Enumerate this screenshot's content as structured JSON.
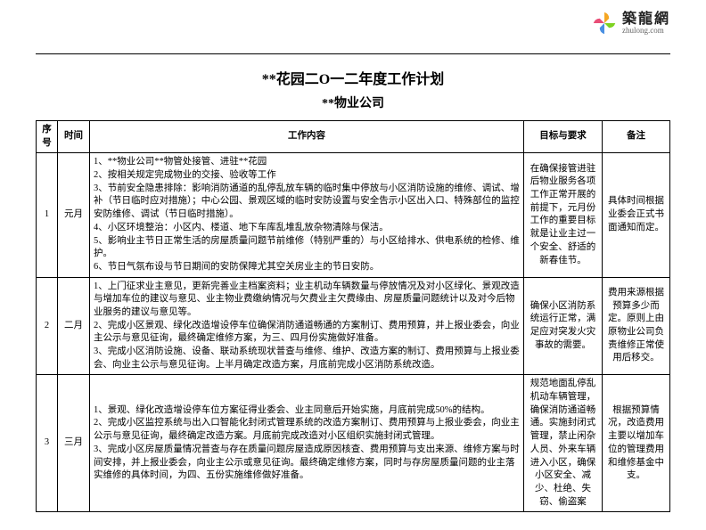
{
  "logo": {
    "cn": "築龍網",
    "en": "zhulong.com",
    "petals": [
      "#f5a623",
      "#7ed321",
      "#4a90e2",
      "#e94e77"
    ]
  },
  "title_main": "**花园二O一二年度工作计划",
  "title_sub": "**物业公司",
  "headers": {
    "no": "序号",
    "time": "时间",
    "content": "工作内容",
    "target": "目标与要求",
    "note": "备注"
  },
  "rows": [
    {
      "no": "1",
      "time": "元月",
      "content": "1、**物业公司**物管处接管、进驻**花园\n2、按相关规定完成物业的交接、验收等工作\n3、节前安全隐患排除：影响消防通道的乱停乱放车辆的临时集中停放与小区消防设施的维修、调试、增补（节日临时应对措施）；中心公园、景观区域的临时安防设置与安全告示小区出入口、特殊部位的监控安防维修、调试（节日临时措施）。\n4、小区环境整治：小区内、楼道、地下车库乱堆乱放杂物清除与保洁。\n5、影响业主节日正常生活的房屋质量问题节前维修（特别严重的）与小区给排水、供电系统的检修、维护。\n6、节日气氛布设与节日期间的安防保障尤其空关房业主的节日安防。",
      "target": "在确保接管进驻后物业服务各项工作正常开展的前提下，元月份工作的重要目标就是让业主过一个安全、舒适的新春佳节。",
      "note": "具体时间根据业委会正式书面通知而定。"
    },
    {
      "no": "2",
      "time": "二月",
      "content": "1、上门征求业主意见，更新完善业主档案资料；业主机动车辆数量与停放情况及对小区绿化、景观改造与增加车位的建议与意见、业主物业费缴纳情况与欠费业主欠费缘由、房屋质量问题统计以及对今后物业服务的建议与意见等。\n2、完成小区景观、绿化改造增设停车位确保消防通道畅通的方案制订、费用预算，并上报业委会，向业主公示与意见征询，最终确定维修方案，为三、四月份实施做好准备。\n3、完成小区消防设施、设备、联动系统现状普查与维修、维护、改造方案的制订、费用预算与上报业委会、向业主公示与意见征询。上半月确定改造方案，月底前完成小区消防系统改造。",
      "target": "确保小区消防系统运行正常，满足应对突发火灾事故的需要。",
      "note": "费用来源根据预算多少而定。原则上由原物业公司负责维修正常使用后移交。"
    },
    {
      "no": "3",
      "time": "三月",
      "content": "1、景观、绿化改造增设停车位方案征得业委会、业主同意后开始实施，月底前完成50%的结构。\n2、完成小区监控系统与出入口智能化封闭式管理系统的改造方案制订、费用预算与上报业委会，向业主公示与意见征询，最终确定改造方案。月底前完成改造对小区组织实施封闭式管理。\n3、完成小区房屋质量情况普查与存在质量问题房屋造成原因核查、费用预算与支出来源、维修方案与时间安排，并上报业委会，向业主公示或意见征询。最终确定维修方案，同时与存房屋质量问题的业主落实维修的具体时间，为四、五份实施维修做好准备。",
      "target": "规范地面乱停乱机动车辆管理，确保消防通道畅通。实施封闭式管理，禁止闲杂人员、外来车辆进入小区，确保小区安全、减少、杜绝、失窃、偷盗案",
      "note": "根据预算情况，改造费用主要以增加车位的管理费用和维修基金中支。"
    }
  ]
}
